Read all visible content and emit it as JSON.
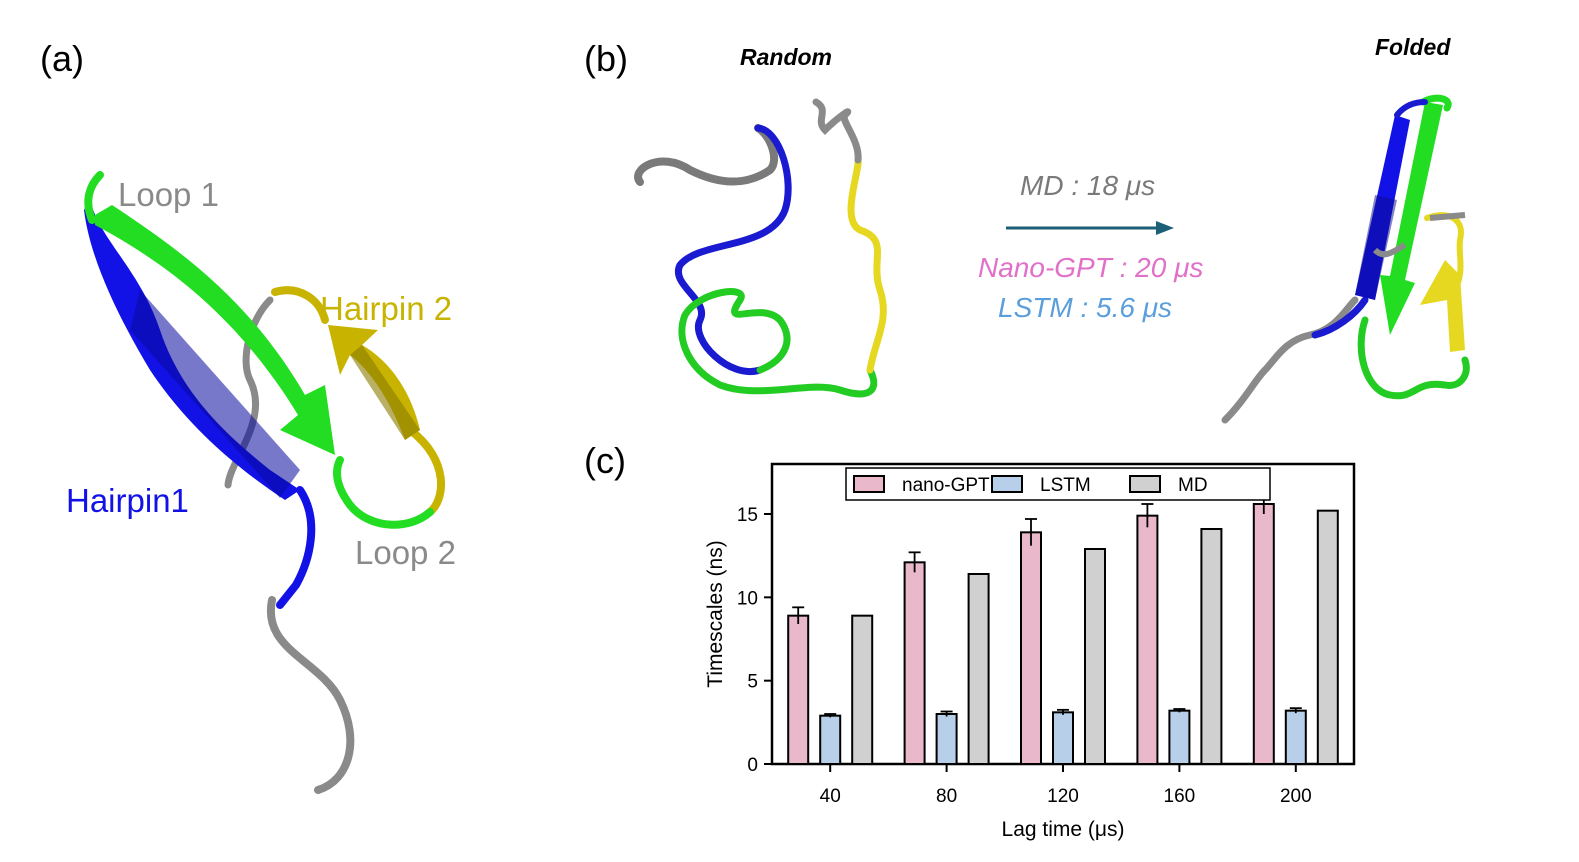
{
  "panels": {
    "a": {
      "label": "(a)",
      "structure_labels": {
        "loop1": "Loop 1",
        "hairpin2": "Hairpin 2",
        "hairpin1": "Hairpin1",
        "loop2": "Loop 2"
      }
    },
    "b": {
      "label": "(b)",
      "random_label": "Random",
      "folded_label": "Folded",
      "md_time": "MD : 18 μs",
      "nanogpt_time": "Nano-GPT : 20 μs",
      "lstm_time": "LSTM :  5.6 μs"
    },
    "c": {
      "label": "(c)"
    }
  },
  "colors": {
    "loop": "#8a8a8a",
    "hairpin1": "#1212e6",
    "green": "#22dd22",
    "hairpin2": "#c8b400",
    "arrow": "#1e5f78",
    "nanogpt_text": "#e070c8",
    "lstm_text": "#5a9edc",
    "md_text": "#7a7a7a",
    "bar_nanogpt": "#e9b8cb",
    "bar_lstm": "#b7cfe8",
    "bar_md": "#d0d0d0"
  },
  "chart_data": {
    "type": "bar",
    "xlabel": "Lag time (μs)",
    "ylabel": "Timescales (ns)",
    "categories": [
      "40",
      "80",
      "120",
      "160",
      "200"
    ],
    "ylim": [
      0,
      18
    ],
    "yticks": [
      0,
      5,
      10,
      15
    ],
    "legend_position": "top",
    "grid": false,
    "series": [
      {
        "name": "nano-GPT",
        "values": [
          8.9,
          12.1,
          13.9,
          14.9,
          15.6
        ],
        "errors": [
          0.5,
          0.6,
          0.8,
          0.7,
          0.6
        ]
      },
      {
        "name": "LSTM",
        "values": [
          2.9,
          3.0,
          3.1,
          3.2,
          3.2
        ],
        "errors": [
          0.1,
          0.15,
          0.15,
          0.1,
          0.15
        ]
      },
      {
        "name": "MD",
        "values": [
          8.9,
          11.4,
          12.9,
          14.1,
          15.2
        ]
      }
    ]
  }
}
